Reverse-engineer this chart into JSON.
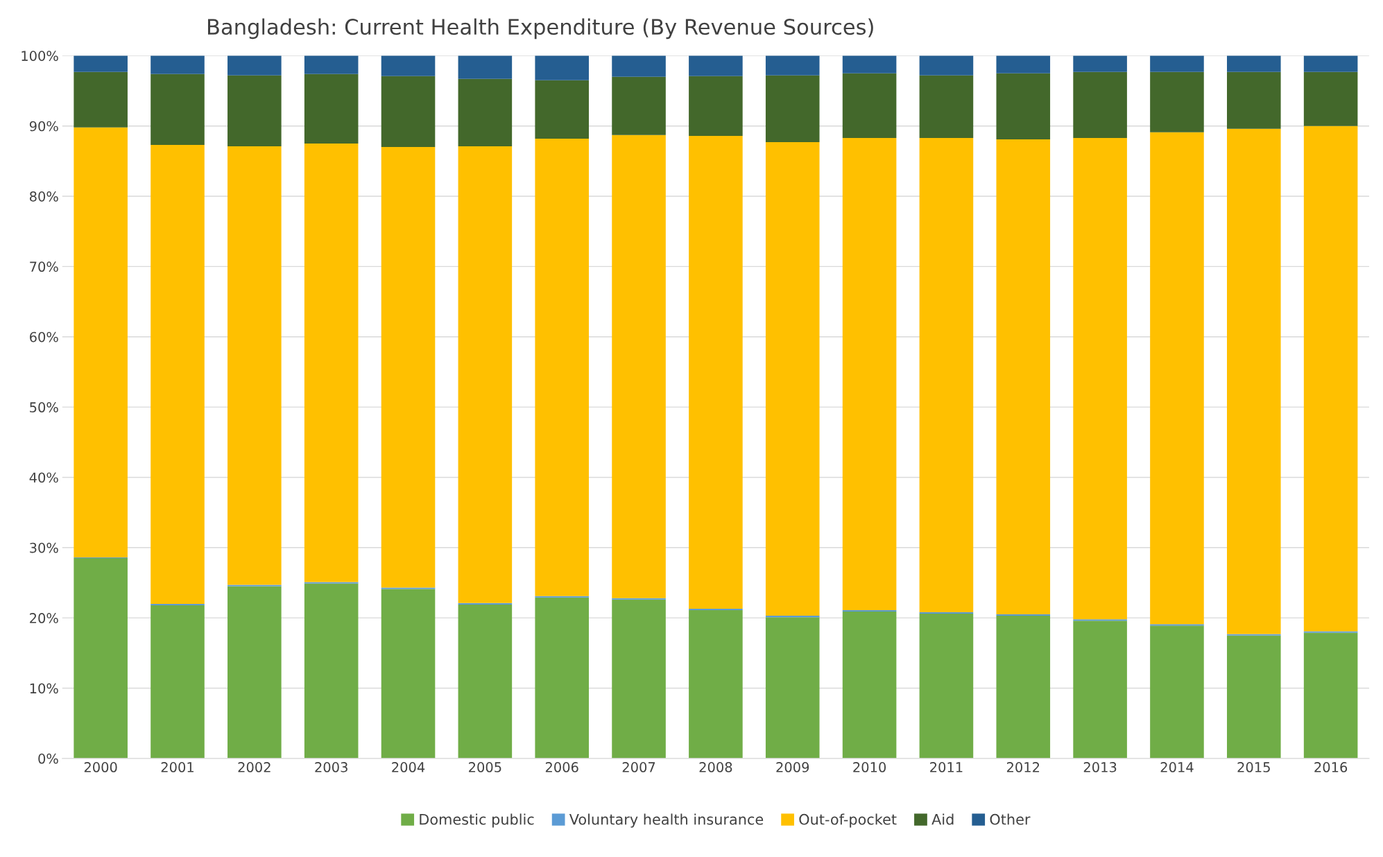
{
  "chart_data": {
    "type": "bar",
    "stacked": true,
    "title": "Bangladesh: Current Health Expenditure (By Revenue Sources)",
    "categories": [
      "2000",
      "2001",
      "2002",
      "2003",
      "2004",
      "2005",
      "2006",
      "2007",
      "2008",
      "2009",
      "2010",
      "2011",
      "2012",
      "2013",
      "2014",
      "2015",
      "2016"
    ],
    "series": [
      {
        "name": "Domestic public",
        "color": "#70ad47",
        "values": [
          28.5,
          21.8,
          24.5,
          24.9,
          24.1,
          21.9,
          22.9,
          22.6,
          21.1,
          20.1,
          20.9,
          20.6,
          20.3,
          19.6,
          18.9,
          17.5,
          17.9
        ]
      },
      {
        "name": "Voluntary health insurance",
        "color": "#5b9bd5",
        "values": [
          0.1,
          0.2,
          0.2,
          0.2,
          0.2,
          0.2,
          0.2,
          0.2,
          0.2,
          0.2,
          0.2,
          0.2,
          0.2,
          0.2,
          0.2,
          0.2,
          0.2
        ]
      },
      {
        "name": "Out-of-pocket",
        "color": "#ffc000",
        "values": [
          61.2,
          65.3,
          62.4,
          62.4,
          62.7,
          65.0,
          65.1,
          65.9,
          67.3,
          67.4,
          67.2,
          67.5,
          67.6,
          68.5,
          70.0,
          71.9,
          71.9
        ]
      },
      {
        "name": "Aid",
        "color": "#43682b",
        "values": [
          7.9,
          10.1,
          10.1,
          9.9,
          10.1,
          9.6,
          8.3,
          8.3,
          8.5,
          9.5,
          9.2,
          8.9,
          9.4,
          9.4,
          8.6,
          8.1,
          7.7
        ]
      },
      {
        "name": "Other",
        "color": "#255e91",
        "values": [
          2.3,
          2.6,
          2.8,
          2.6,
          2.9,
          3.3,
          3.5,
          3.0,
          2.9,
          2.8,
          2.5,
          2.8,
          2.5,
          2.3,
          2.3,
          2.3,
          2.3
        ]
      }
    ],
    "ylim": [
      0,
      100
    ],
    "yticks": [
      {
        "value": 0,
        "label": "0%"
      },
      {
        "value": 10,
        "label": "10%"
      },
      {
        "value": 20,
        "label": "20%"
      },
      {
        "value": 30,
        "label": "30%"
      },
      {
        "value": 40,
        "label": "40%"
      },
      {
        "value": 50,
        "label": "50%"
      },
      {
        "value": 60,
        "label": "60%"
      },
      {
        "value": 70,
        "label": "70%"
      },
      {
        "value": 80,
        "label": "80%"
      },
      {
        "value": 90,
        "label": "90%"
      },
      {
        "value": 100,
        "label": "100%"
      }
    ],
    "grid": "y",
    "legend": "bottom"
  }
}
